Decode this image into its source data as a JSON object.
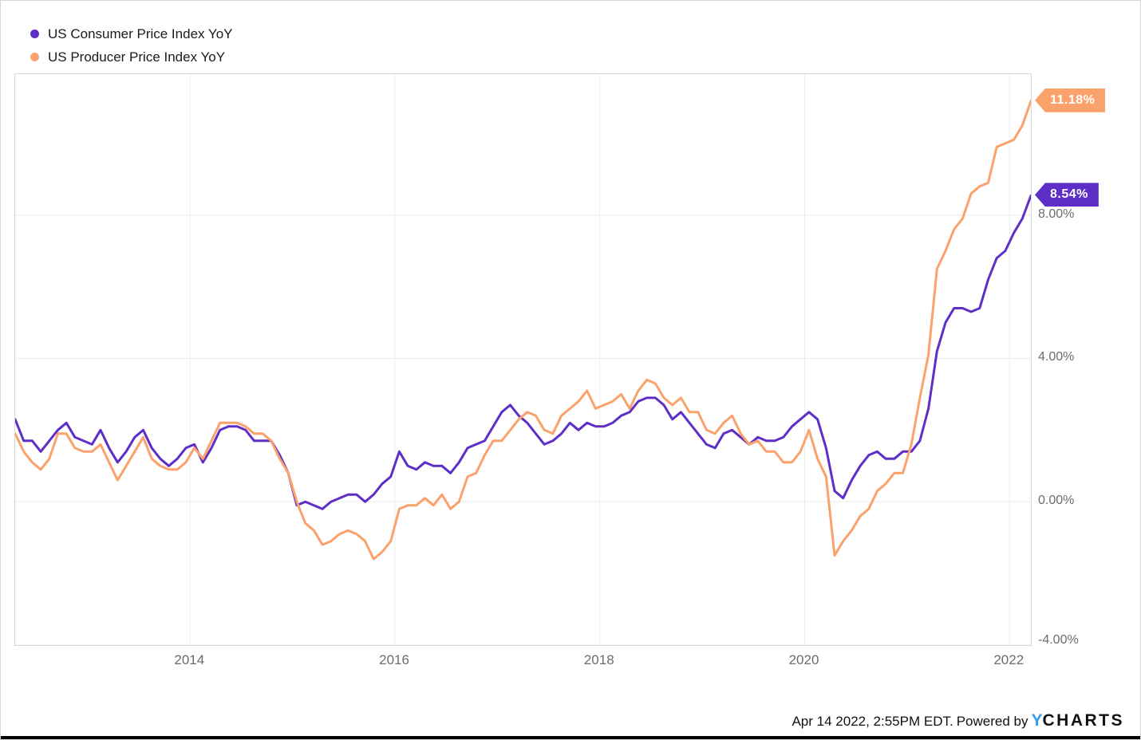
{
  "legend": {
    "items": [
      {
        "label": "US Consumer Price Index YoY",
        "color": "#5e2fc7"
      },
      {
        "label": "US Producer Price Index YoY",
        "color": "#fba26c"
      }
    ]
  },
  "footer": {
    "timestamp": "Apr 14 2022, 2:55PM EDT.",
    "powered_by": "Powered by",
    "logo_y": "Y",
    "logo_charts": "CHARTS"
  },
  "colors": {
    "gridline": "#ececec",
    "plot_border": "#d8d8d8",
    "axis_text": "#6b6b6b",
    "legend_text": "#1b1b1b",
    "logo_blue": "#2e9df2",
    "background": "#ffffff"
  },
  "chart_data": {
    "type": "line",
    "title": "",
    "xlabel": "",
    "ylabel": "",
    "grid": true,
    "legend_position": "top-left",
    "xlim": [
      2012.2917,
      2022.2083
    ],
    "ylim": [
      -4,
      11.93
    ],
    "x_ticks": [
      {
        "value": 2014,
        "label": "2014"
      },
      {
        "value": 2016,
        "label": "2016"
      },
      {
        "value": 2018,
        "label": "2018"
      },
      {
        "value": 2020,
        "label": "2020"
      },
      {
        "value": 2022,
        "label": "2022"
      }
    ],
    "y_ticks": [
      {
        "value": 8,
        "label": "8.00%"
      },
      {
        "value": 4,
        "label": "4.00%"
      },
      {
        "value": 0,
        "label": "0.00%"
      },
      {
        "value": -4,
        "label": "-4.00%"
      }
    ],
    "months": [
      "2012-04",
      "2012-05",
      "2012-06",
      "2012-07",
      "2012-08",
      "2012-09",
      "2012-10",
      "2012-11",
      "2012-12",
      "2013-01",
      "2013-02",
      "2013-03",
      "2013-04",
      "2013-05",
      "2013-06",
      "2013-07",
      "2013-08",
      "2013-09",
      "2013-10",
      "2013-11",
      "2013-12",
      "2014-01",
      "2014-02",
      "2014-03",
      "2014-04",
      "2014-05",
      "2014-06",
      "2014-07",
      "2014-08",
      "2014-09",
      "2014-10",
      "2014-11",
      "2014-12",
      "2015-01",
      "2015-02",
      "2015-03",
      "2015-04",
      "2015-05",
      "2015-06",
      "2015-07",
      "2015-08",
      "2015-09",
      "2015-10",
      "2015-11",
      "2015-12",
      "2016-01",
      "2016-02",
      "2016-03",
      "2016-04",
      "2016-05",
      "2016-06",
      "2016-07",
      "2016-08",
      "2016-09",
      "2016-10",
      "2016-11",
      "2016-12",
      "2017-01",
      "2017-02",
      "2017-03",
      "2017-04",
      "2017-05",
      "2017-06",
      "2017-07",
      "2017-08",
      "2017-09",
      "2017-10",
      "2017-11",
      "2017-12",
      "2018-01",
      "2018-02",
      "2018-03",
      "2018-04",
      "2018-05",
      "2018-06",
      "2018-07",
      "2018-08",
      "2018-09",
      "2018-10",
      "2018-11",
      "2018-12",
      "2019-01",
      "2019-02",
      "2019-03",
      "2019-04",
      "2019-05",
      "2019-06",
      "2019-07",
      "2019-08",
      "2019-09",
      "2019-10",
      "2019-11",
      "2019-12",
      "2020-01",
      "2020-02",
      "2020-03",
      "2020-04",
      "2020-05",
      "2020-06",
      "2020-07",
      "2020-08",
      "2020-09",
      "2020-10",
      "2020-11",
      "2020-12",
      "2021-01",
      "2021-02",
      "2021-03",
      "2021-04",
      "2021-05",
      "2021-06",
      "2021-07",
      "2021-08",
      "2021-09",
      "2021-10",
      "2021-11",
      "2021-12",
      "2022-01",
      "2022-02",
      "2022-03"
    ],
    "series": [
      {
        "name": "US Consumer Price Index YoY",
        "color": "#5e2fc7",
        "end_label": "8.54%",
        "values": [
          2.3,
          1.7,
          1.7,
          1.4,
          1.7,
          2.0,
          2.2,
          1.8,
          1.7,
          1.6,
          2.0,
          1.5,
          1.1,
          1.4,
          1.8,
          2.0,
          1.5,
          1.2,
          1.0,
          1.2,
          1.5,
          1.6,
          1.1,
          1.5,
          2.0,
          2.1,
          2.1,
          2.0,
          1.7,
          1.7,
          1.7,
          1.3,
          0.8,
          -0.1,
          0.0,
          -0.1,
          -0.2,
          0.0,
          0.1,
          0.2,
          0.2,
          0.0,
          0.2,
          0.5,
          0.7,
          1.4,
          1.0,
          0.9,
          1.1,
          1.0,
          1.0,
          0.8,
          1.1,
          1.5,
          1.6,
          1.7,
          2.1,
          2.5,
          2.7,
          2.4,
          2.2,
          1.9,
          1.6,
          1.7,
          1.9,
          2.2,
          2.0,
          2.2,
          2.1,
          2.1,
          2.2,
          2.4,
          2.5,
          2.8,
          2.9,
          2.9,
          2.7,
          2.3,
          2.5,
          2.2,
          1.9,
          1.6,
          1.5,
          1.9,
          2.0,
          1.8,
          1.6,
          1.8,
          1.7,
          1.7,
          1.8,
          2.1,
          2.3,
          2.5,
          2.3,
          1.5,
          0.3,
          0.1,
          0.6,
          1.0,
          1.3,
          1.4,
          1.2,
          1.2,
          1.4,
          1.4,
          1.7,
          2.6,
          4.2,
          5.0,
          5.4,
          5.4,
          5.3,
          5.4,
          6.2,
          6.8,
          7.0,
          7.5,
          7.9,
          8.54
        ]
      },
      {
        "name": "US Producer Price Index YoY",
        "color": "#fba26c",
        "end_label": "11.18%",
        "values": [
          1.9,
          1.4,
          1.1,
          0.9,
          1.2,
          1.9,
          1.9,
          1.5,
          1.4,
          1.4,
          1.6,
          1.1,
          0.6,
          1.0,
          1.4,
          1.8,
          1.2,
          1.0,
          0.9,
          0.9,
          1.1,
          1.5,
          1.2,
          1.7,
          2.2,
          2.2,
          2.2,
          2.1,
          1.9,
          1.9,
          1.7,
          1.2,
          0.8,
          0.0,
          -0.6,
          -0.8,
          -1.2,
          -1.1,
          -0.9,
          -0.8,
          -0.9,
          -1.1,
          -1.6,
          -1.4,
          -1.1,
          -0.2,
          -0.1,
          -0.1,
          0.1,
          -0.1,
          0.2,
          -0.2,
          0.0,
          0.7,
          0.8,
          1.3,
          1.7,
          1.7,
          2.0,
          2.3,
          2.5,
          2.4,
          2.0,
          1.9,
          2.4,
          2.6,
          2.8,
          3.1,
          2.6,
          2.7,
          2.8,
          3.0,
          2.6,
          3.1,
          3.4,
          3.3,
          2.9,
          2.7,
          2.9,
          2.5,
          2.5,
          2.0,
          1.9,
          2.2,
          2.4,
          1.9,
          1.6,
          1.7,
          1.4,
          1.4,
          1.1,
          1.1,
          1.4,
          2.0,
          1.2,
          0.7,
          -1.5,
          -1.1,
          -0.8,
          -0.4,
          -0.2,
          0.3,
          0.5,
          0.8,
          0.8,
          1.6,
          2.9,
          4.1,
          6.5,
          7.0,
          7.6,
          7.9,
          8.6,
          8.8,
          8.9,
          9.9,
          10.0,
          10.1,
          10.5,
          11.18
        ]
      }
    ]
  }
}
